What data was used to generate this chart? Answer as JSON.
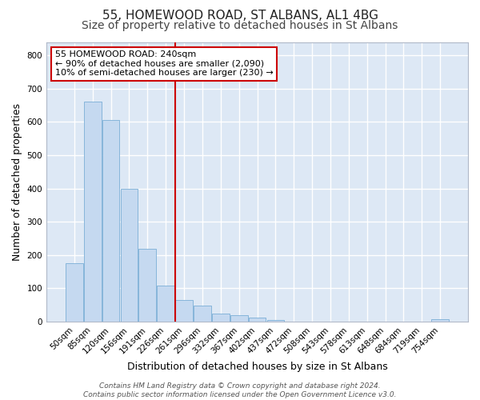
{
  "title1": "55, HOMEWOOD ROAD, ST ALBANS, AL1 4BG",
  "title2": "Size of property relative to detached houses in St Albans",
  "xlabel": "Distribution of detached houses by size in St Albans",
  "ylabel": "Number of detached properties",
  "bar_labels": [
    "50sqm",
    "85sqm",
    "120sqm",
    "156sqm",
    "191sqm",
    "226sqm",
    "261sqm",
    "296sqm",
    "332sqm",
    "367sqm",
    "402sqm",
    "437sqm",
    "472sqm",
    "508sqm",
    "543sqm",
    "578sqm",
    "613sqm",
    "648sqm",
    "684sqm",
    "719sqm",
    "754sqm"
  ],
  "bar_values": [
    175,
    660,
    605,
    400,
    218,
    108,
    65,
    48,
    25,
    18,
    12,
    5,
    0,
    0,
    0,
    0,
    0,
    0,
    0,
    0,
    8
  ],
  "bar_color": "#c5d9f0",
  "bar_edge_color": "#7aaed6",
  "red_line_x": 5.5,
  "red_line_color": "#cc0000",
  "annotation_text": "55 HOMEWOOD ROAD: 240sqm\n← 90% of detached houses are smaller (2,090)\n10% of semi-detached houses are larger (230) →",
  "annotation_box_color": "#ffffff",
  "annotation_box_edge": "#cc0000",
  "ylim": [
    0,
    840
  ],
  "yticks": [
    0,
    100,
    200,
    300,
    400,
    500,
    600,
    700,
    800
  ],
  "fig_bg_color": "#ffffff",
  "bg_color": "#dde8f5",
  "grid_color": "#ffffff",
  "title1_fontsize": 11,
  "title2_fontsize": 10,
  "axis_label_fontsize": 9,
  "tick_fontsize": 7.5,
  "footer_fontsize": 6.5,
  "footer_line1": "Contains HM Land Registry data © Crown copyright and database right 2024.",
  "footer_line2": "Contains public sector information licensed under the Open Government Licence v3.0."
}
